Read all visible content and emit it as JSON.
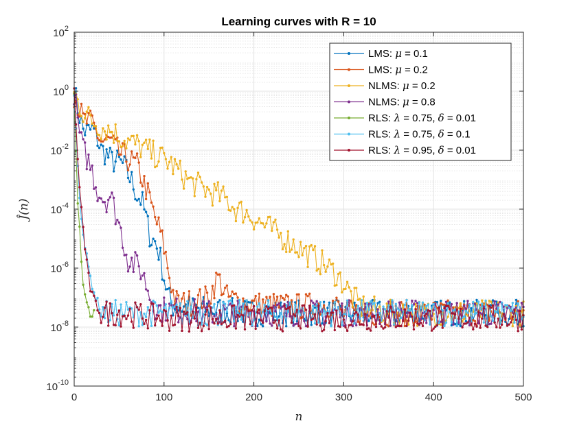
{
  "chart_data": {
    "type": "line",
    "title": "Learning curves with R = 10",
    "xlabel": "n",
    "ylabel": "Ĵ(n)",
    "x_scale": "linear",
    "y_scale": "log",
    "xlim": [
      0,
      500
    ],
    "ylim": [
      1e-10,
      100
    ],
    "x_ticks": [
      0,
      100,
      200,
      300,
      400,
      500
    ],
    "x_tick_labels": [
      "0",
      "100",
      "200",
      "300",
      "400",
      "500"
    ],
    "y_ticks": [
      1e-10,
      1e-08,
      1e-06,
      0.0001,
      0.01,
      1,
      100
    ],
    "y_tick_labels": [
      {
        "base": "10",
        "exp": "-10"
      },
      {
        "base": "10",
        "exp": "-8"
      },
      {
        "base": "10",
        "exp": "-6"
      },
      {
        "base": "10",
        "exp": "-4"
      },
      {
        "base": "10",
        "exp": "-2"
      },
      {
        "base": "10",
        "exp": "0"
      },
      {
        "base": "10",
        "exp": "2"
      }
    ],
    "grid": true,
    "minor_grid": true,
    "legend_position": "top-right",
    "series": [
      {
        "legend": {
          "algo": "LMS:",
          "greek": "μ",
          "rest": " = 0.1"
        },
        "color": "#0072BD",
        "points": [
          [
            0,
            1.0
          ],
          [
            5,
            0.2
          ],
          [
            10,
            0.05
          ],
          [
            15,
            0.04
          ],
          [
            20,
            0.05
          ],
          [
            25,
            0.03
          ],
          [
            30,
            0.01
          ],
          [
            35,
            0.008
          ],
          [
            40,
            0.005
          ],
          [
            45,
            0.004
          ],
          [
            50,
            0.004
          ],
          [
            55,
            0.003
          ],
          [
            60,
            0.0015
          ],
          [
            65,
            0.0008
          ],
          [
            70,
            0.0003
          ],
          [
            75,
            0.0002
          ],
          [
            80,
            5e-05
          ],
          [
            85,
            1e-05
          ],
          [
            90,
            8e-06
          ],
          [
            95,
            3e-06
          ],
          [
            100,
            5e-07
          ],
          [
            105,
            1e-07
          ],
          [
            110,
            5e-08
          ],
          [
            150,
            4e-08
          ],
          [
            200,
            3e-08
          ],
          [
            300,
            3e-08
          ],
          [
            400,
            3e-08
          ],
          [
            500,
            3e-08
          ]
        ]
      },
      {
        "legend": {
          "algo": "LMS:",
          "greek": "μ",
          "rest": " = 0.2"
        },
        "color": "#D95319",
        "points": [
          [
            0,
            0.8
          ],
          [
            5,
            0.3
          ],
          [
            10,
            0.1
          ],
          [
            20,
            0.08
          ],
          [
            30,
            0.02
          ],
          [
            40,
            0.02
          ],
          [
            50,
            0.008
          ],
          [
            60,
            0.005
          ],
          [
            70,
            0.003
          ],
          [
            80,
            0.0005
          ],
          [
            90,
            5e-05
          ],
          [
            95,
            2e-05
          ],
          [
            100,
            5e-06
          ],
          [
            105,
            8e-07
          ],
          [
            110,
            1.5e-07
          ],
          [
            115,
            6e-08
          ],
          [
            130,
            7e-08
          ],
          [
            150,
            1e-07
          ],
          [
            160,
            5e-07
          ],
          [
            170,
            1e-07
          ],
          [
            200,
            6e-08
          ],
          [
            250,
            5e-08
          ],
          [
            290,
            6e-08
          ],
          [
            300,
            3e-08
          ],
          [
            400,
            3e-08
          ],
          [
            500,
            3e-08
          ]
        ]
      },
      {
        "legend": {
          "algo": "NLMS:",
          "greek": "μ",
          "rest": " = 0.2"
        },
        "color": "#EDB120",
        "points": [
          [
            0,
            0.8
          ],
          [
            10,
            0.2
          ],
          [
            20,
            0.1
          ],
          [
            30,
            0.06
          ],
          [
            40,
            0.05
          ],
          [
            50,
            0.03
          ],
          [
            60,
            0.02
          ],
          [
            70,
            0.015
          ],
          [
            80,
            0.01
          ],
          [
            90,
            0.007
          ],
          [
            100,
            0.005
          ],
          [
            110,
            0.003
          ],
          [
            120,
            0.0015
          ],
          [
            130,
            0.0008
          ],
          [
            140,
            0.0006
          ],
          [
            150,
            0.0004
          ],
          [
            160,
            0.0003
          ],
          [
            170,
            0.0002
          ],
          [
            180,
            0.0001
          ],
          [
            190,
            8e-05
          ],
          [
            200,
            5e-05
          ],
          [
            210,
            3e-05
          ],
          [
            220,
            2e-05
          ],
          [
            230,
            1.2e-05
          ],
          [
            240,
            8e-06
          ],
          [
            250,
            5e-06
          ],
          [
            260,
            3e-06
          ],
          [
            270,
            2e-06
          ],
          [
            280,
            1.2e-06
          ],
          [
            290,
            7e-07
          ],
          [
            300,
            3e-07
          ],
          [
            310,
            1e-07
          ],
          [
            320,
            5e-08
          ],
          [
            350,
            3e-08
          ],
          [
            400,
            3e-08
          ],
          [
            500,
            3e-08
          ]
        ]
      },
      {
        "legend": {
          "algo": "NLMS:",
          "greek": "μ",
          "rest": " = 0.8"
        },
        "color": "#7E2F8E",
        "points": [
          [
            0,
            1.0
          ],
          [
            5,
            0.05
          ],
          [
            10,
            0.01
          ],
          [
            15,
            0.005
          ],
          [
            20,
            0.002
          ],
          [
            25,
            0.0005
          ],
          [
            30,
            0.0003
          ],
          [
            35,
            0.0002
          ],
          [
            40,
            0.0003
          ],
          [
            45,
            0.0001
          ],
          [
            50,
            3e-05
          ],
          [
            55,
            8e-06
          ],
          [
            60,
            2e-06
          ],
          [
            65,
            1.5e-06
          ],
          [
            70,
            1.2e-06
          ],
          [
            75,
            8e-07
          ],
          [
            80,
            3e-07
          ],
          [
            85,
            1e-07
          ],
          [
            90,
            5e-08
          ],
          [
            95,
            4e-08
          ],
          [
            100,
            4e-08
          ],
          [
            150,
            3e-08
          ],
          [
            200,
            3e-08
          ],
          [
            300,
            3e-08
          ],
          [
            400,
            3e-08
          ],
          [
            500,
            3e-08
          ]
        ]
      },
      {
        "legend": {
          "algo": "RLS:",
          "greek": "λ",
          "rest": " = 0.75, ",
          "greek2": "δ",
          "rest2": " = 0.01"
        },
        "color": "#77AC30",
        "points": [
          [
            0,
            1.0
          ],
          [
            2,
            0.01
          ],
          [
            4,
            0.0002
          ],
          [
            6,
            2e-05
          ],
          [
            8,
            2e-06
          ],
          [
            10,
            3e-07
          ],
          [
            12,
            1e-07
          ],
          [
            14,
            6e-08
          ],
          [
            16,
            4e-08
          ],
          [
            18,
            3e-08
          ],
          [
            20,
            2e-08
          ],
          [
            22,
            3e-08
          ]
        ]
      },
      {
        "legend": {
          "algo": "RLS:",
          "greek": "λ",
          "rest": " = 0.75, ",
          "greek2": "δ",
          "rest2": " = 0.1"
        },
        "color": "#4DBEEE",
        "points": [
          [
            0,
            1.0
          ],
          [
            3,
            0.01
          ],
          [
            6,
            0.0003
          ],
          [
            9,
            3e-05
          ],
          [
            12,
            5e-06
          ],
          [
            15,
            1.5e-06
          ],
          [
            18,
            5e-07
          ],
          [
            21,
            2e-07
          ],
          [
            24,
            1e-07
          ],
          [
            27,
            6e-08
          ],
          [
            30,
            4e-08
          ],
          [
            35,
            3e-08
          ],
          [
            50,
            3e-08
          ],
          [
            100,
            3e-08
          ],
          [
            200,
            3e-08
          ],
          [
            300,
            3e-08
          ],
          [
            400,
            3e-08
          ],
          [
            500,
            3e-08
          ]
        ]
      },
      {
        "legend": {
          "algo": "RLS:",
          "greek": "λ",
          "rest": " = 0.95, ",
          "greek2": "δ",
          "rest2": " = 0.01"
        },
        "color": "#A2142F",
        "points": [
          [
            0,
            1.0
          ],
          [
            3,
            0.02
          ],
          [
            6,
            0.0005
          ],
          [
            9,
            5e-05
          ],
          [
            12,
            5e-06
          ],
          [
            15,
            8e-07
          ],
          [
            18,
            2e-07
          ],
          [
            21,
            1e-07
          ],
          [
            24,
            6e-08
          ],
          [
            27,
            4e-08
          ],
          [
            30,
            3e-08
          ],
          [
            50,
            3e-08
          ],
          [
            100,
            2e-08
          ],
          [
            200,
            2e-08
          ],
          [
            300,
            2e-08
          ],
          [
            400,
            2e-08
          ],
          [
            500,
            2e-08
          ]
        ]
      }
    ]
  }
}
